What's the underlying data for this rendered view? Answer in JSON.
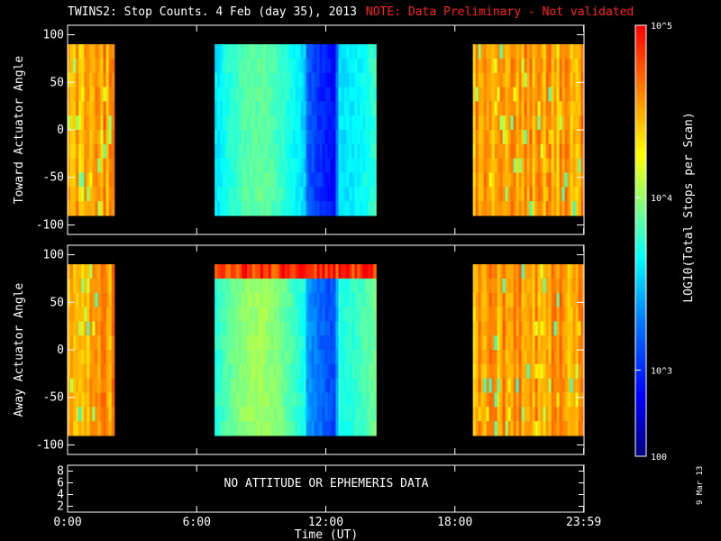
{
  "title": {
    "main": "TWINS2: Stop Counts.  4 Feb (day  35), 2013",
    "note": "NOTE: Data Preliminary - Not validated"
  },
  "colorbar": {
    "label": "LOG10(Total Stops per Scan)",
    "ticks": [
      "10^5",
      "10^4",
      "10^3",
      "100"
    ],
    "colors": [
      "#00007f",
      "#0000ff",
      "#007fff",
      "#00ffff",
      "#7fff7f",
      "#ffff00",
      "#ff7f00",
      "#ff0000"
    ]
  },
  "datestamp": "9 Mar 13",
  "chart_data": [
    {
      "type": "heatmap",
      "ylabel": "Toward Actuator Angle",
      "ylim": [
        -110,
        110
      ],
      "yticks": [
        "100",
        "50",
        "0",
        "-50",
        "-100"
      ],
      "xlim": [
        0,
        24
      ],
      "data_y_range": [
        -90,
        90
      ],
      "segments": [
        {
          "start": "0:00",
          "end": "2:10",
          "level": "high (~10^4-10^5)"
        },
        {
          "start": "6:50",
          "end": "14:20",
          "level": "low (~10^3-10^3.5)"
        },
        {
          "start": "18:50",
          "end": "23:59",
          "level": "high (~10^4-10^5)"
        }
      ]
    },
    {
      "type": "heatmap",
      "ylabel": "Away Actuator Angle",
      "ylim": [
        -110,
        110
      ],
      "yticks": [
        "100",
        "50",
        "0",
        "-50",
        "-100"
      ],
      "xlim": [
        0,
        24
      ],
      "data_y_range": [
        -90,
        90
      ],
      "segments": [
        {
          "start": "0:00",
          "end": "2:10",
          "level": "high (~10^4-10^5)"
        },
        {
          "start": "6:50",
          "end": "14:20",
          "level": "low-mid (~10^3-10^4)"
        },
        {
          "start": "18:50",
          "end": "23:59",
          "level": "high (~10^4-10^5)"
        }
      ]
    },
    {
      "type": "line",
      "yticks": [
        "8",
        "6",
        "4",
        "2"
      ],
      "message": "NO ATTITUDE OR EPHEMERIS DATA",
      "xticks": [
        "0:00",
        "6:00",
        "12:00",
        "18:00",
        "23:59"
      ],
      "xlabel": "Time (UT)"
    }
  ]
}
